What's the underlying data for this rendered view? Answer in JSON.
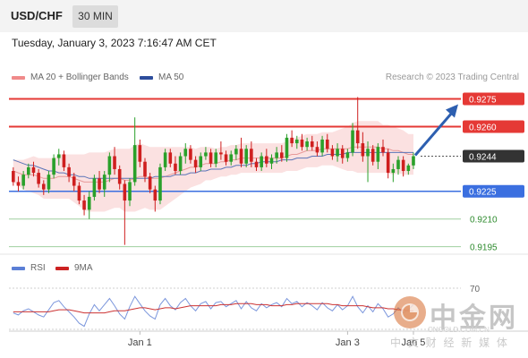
{
  "header": {
    "symbol": "USD/CHF",
    "timeframe": "30 MIN"
  },
  "timestamp": "Tuesday, January 3, 2023 7:16:47 AM CET",
  "legend": {
    "bollinger": {
      "label": "MA 20 + Bollinger Bands",
      "color": "#f08a8a"
    },
    "ma50": {
      "label": "MA 50",
      "color": "#2d4d9c"
    },
    "source": "Research © 2023 Trading Central"
  },
  "rsi_legend": {
    "rsi": {
      "label": "RSI",
      "color": "#5b7fd6"
    },
    "ma9": {
      "label": "9MA",
      "color": "#cc2222"
    }
  },
  "chart_data": {
    "type": "candlestick",
    "ylim": [
      0.919,
      0.9283
    ],
    "x_labels": [
      {
        "label": "Jan 1",
        "index": 25
      },
      {
        "label": "Jan 3",
        "index": 66
      },
      {
        "label": "Jan 5",
        "index": 79
      }
    ],
    "levels": [
      {
        "value": 0.9275,
        "label": "0.9275",
        "type": "resistance",
        "color": "#e53935"
      },
      {
        "value": 0.926,
        "label": "0.9260",
        "type": "resistance",
        "color": "#e53935"
      },
      {
        "value": 0.9244,
        "label": "0.9244",
        "type": "last",
        "color": "#333333"
      },
      {
        "value": 0.9225,
        "label": "0.9225",
        "type": "pivot",
        "color": "#3b6fe0"
      },
      {
        "value": 0.921,
        "label": "0.9210",
        "type": "support",
        "color": "#2e8b2e"
      },
      {
        "value": 0.9195,
        "label": "0.9195",
        "type": "support",
        "color": "#2e8b2e"
      }
    ],
    "candles": [
      [
        0.9236,
        0.9238,
        0.9228,
        0.923
      ],
      [
        0.923,
        0.9233,
        0.9225,
        0.9228
      ],
      [
        0.9228,
        0.9236,
        0.9226,
        0.9234
      ],
      [
        0.9234,
        0.924,
        0.9232,
        0.9238
      ],
      [
        0.9238,
        0.9241,
        0.9233,
        0.9235
      ],
      [
        0.9235,
        0.9237,
        0.9227,
        0.9229
      ],
      [
        0.9229,
        0.9231,
        0.9223,
        0.9226
      ],
      [
        0.9226,
        0.9236,
        0.9224,
        0.9234
      ],
      [
        0.9234,
        0.9245,
        0.9232,
        0.9243
      ],
      [
        0.9243,
        0.9248,
        0.9239,
        0.9245
      ],
      [
        0.9245,
        0.9247,
        0.9236,
        0.9238
      ],
      [
        0.9238,
        0.924,
        0.923,
        0.9233
      ],
      [
        0.9233,
        0.9235,
        0.9225,
        0.9228
      ],
      [
        0.9228,
        0.923,
        0.9218,
        0.922
      ],
      [
        0.922,
        0.9223,
        0.9212,
        0.9215
      ],
      [
        0.9215,
        0.9225,
        0.921,
        0.9222
      ],
      [
        0.9222,
        0.9234,
        0.922,
        0.9232
      ],
      [
        0.9232,
        0.9236,
        0.9224,
        0.9226
      ],
      [
        0.9226,
        0.9236,
        0.9222,
        0.9234
      ],
      [
        0.9234,
        0.9246,
        0.923,
        0.9244
      ],
      [
        0.9244,
        0.9249,
        0.9234,
        0.9237
      ],
      [
        0.9237,
        0.9239,
        0.9226,
        0.9229
      ],
      [
        0.9229,
        0.9231,
        0.9196,
        0.922
      ],
      [
        0.922,
        0.9232,
        0.9217,
        0.923
      ],
      [
        0.923,
        0.9265,
        0.9228,
        0.925
      ],
      [
        0.925,
        0.9253,
        0.9238,
        0.9241
      ],
      [
        0.9241,
        0.9243,
        0.923,
        0.9233
      ],
      [
        0.9233,
        0.9235,
        0.9224,
        0.9226
      ],
      [
        0.9226,
        0.9228,
        0.9214,
        0.922
      ],
      [
        0.922,
        0.924,
        0.9218,
        0.9238
      ],
      [
        0.9238,
        0.9248,
        0.9236,
        0.9246
      ],
      [
        0.9246,
        0.9248,
        0.9238,
        0.924
      ],
      [
        0.924,
        0.9244,
        0.9234,
        0.9236
      ],
      [
        0.9236,
        0.9246,
        0.9234,
        0.9244
      ],
      [
        0.9244,
        0.9251,
        0.924,
        0.9248
      ],
      [
        0.9248,
        0.925,
        0.924,
        0.9242
      ],
      [
        0.9242,
        0.9244,
        0.9235,
        0.9238
      ],
      [
        0.9238,
        0.9246,
        0.9236,
        0.9244
      ],
      [
        0.9244,
        0.9249,
        0.9242,
        0.9246
      ],
      [
        0.9246,
        0.9248,
        0.9238,
        0.924
      ],
      [
        0.924,
        0.9248,
        0.9238,
        0.9246
      ],
      [
        0.9246,
        0.9252,
        0.9242,
        0.9245
      ],
      [
        0.9245,
        0.9247,
        0.9239,
        0.9241
      ],
      [
        0.9241,
        0.9247,
        0.9239,
        0.9245
      ],
      [
        0.9245,
        0.925,
        0.9242,
        0.9248
      ],
      [
        0.9248,
        0.9254,
        0.9238,
        0.924
      ],
      [
        0.924,
        0.925,
        0.9238,
        0.9248
      ],
      [
        0.9248,
        0.9252,
        0.9238,
        0.9241
      ],
      [
        0.9241,
        0.9243,
        0.9236,
        0.9238
      ],
      [
        0.9238,
        0.9246,
        0.9236,
        0.9244
      ],
      [
        0.9244,
        0.9248,
        0.9238,
        0.924
      ],
      [
        0.924,
        0.9245,
        0.9237,
        0.9243
      ],
      [
        0.9243,
        0.9249,
        0.924,
        0.9246
      ],
      [
        0.9246,
        0.925,
        0.9241,
        0.9243
      ],
      [
        0.9243,
        0.9256,
        0.9241,
        0.9254
      ],
      [
        0.9254,
        0.9258,
        0.9249,
        0.9251
      ],
      [
        0.9251,
        0.9255,
        0.9248,
        0.9253
      ],
      [
        0.9253,
        0.9256,
        0.9247,
        0.9249
      ],
      [
        0.9249,
        0.9254,
        0.9247,
        0.9252
      ],
      [
        0.9252,
        0.9255,
        0.9247,
        0.9249
      ],
      [
        0.9249,
        0.9252,
        0.9244,
        0.9246
      ],
      [
        0.9246,
        0.9255,
        0.9244,
        0.9253
      ],
      [
        0.9253,
        0.9256,
        0.9246,
        0.9248
      ],
      [
        0.9248,
        0.925,
        0.9242,
        0.9244
      ],
      [
        0.9244,
        0.9251,
        0.9241,
        0.9248
      ],
      [
        0.9248,
        0.925,
        0.924,
        0.9243
      ],
      [
        0.9243,
        0.9248,
        0.9241,
        0.9246
      ],
      [
        0.9246,
        0.9262,
        0.9244,
        0.9258
      ],
      [
        0.9258,
        0.9276,
        0.9248,
        0.9251
      ],
      [
        0.9251,
        0.9257,
        0.9241,
        0.9244
      ],
      [
        0.9244,
        0.9252,
        0.923,
        0.9248
      ],
      [
        0.9248,
        0.925,
        0.9239,
        0.9241
      ],
      [
        0.9241,
        0.9251,
        0.9237,
        0.9249
      ],
      [
        0.9249,
        0.9253,
        0.9244,
        0.9246
      ],
      [
        0.9246,
        0.9248,
        0.9232,
        0.9235
      ],
      [
        0.9235,
        0.924,
        0.923,
        0.9237
      ],
      [
        0.9237,
        0.9244,
        0.9234,
        0.9242
      ],
      [
        0.9242,
        0.9244,
        0.9233,
        0.9236
      ],
      [
        0.9236,
        0.924,
        0.9234,
        0.9239
      ],
      [
        0.9239,
        0.9246,
        0.9237,
        0.9244
      ]
    ],
    "ma20": [
      0.9236,
      0.9235,
      0.9234,
      0.9234,
      0.9234,
      0.9233,
      0.9232,
      0.9232,
      0.9232,
      0.9233,
      0.9233,
      0.9233,
      0.9232,
      0.9231,
      0.923,
      0.923,
      0.923,
      0.923,
      0.923,
      0.9231,
      0.9232,
      0.9232,
      0.9231,
      0.9231,
      0.9232,
      0.9233,
      0.9233,
      0.9232,
      0.9232,
      0.9232,
      0.9233,
      0.9234,
      0.9235,
      0.9236,
      0.9237,
      0.9238,
      0.9238,
      0.9239,
      0.924,
      0.924,
      0.924,
      0.9241,
      0.9241,
      0.9242,
      0.9242,
      0.9243,
      0.9243,
      0.9243,
      0.9243,
      0.9243,
      0.9243,
      0.9243,
      0.9243,
      0.9243,
      0.9244,
      0.9245,
      0.9245,
      0.9246,
      0.9247,
      0.9247,
      0.9247,
      0.9248,
      0.9248,
      0.9248,
      0.9248,
      0.9248,
      0.9248,
      0.9249,
      0.9249,
      0.9249,
      0.9249,
      0.9249,
      0.9249,
      0.9248,
      0.9248,
      0.9247,
      0.9247,
      0.9246,
      0.9245,
      0.9245
    ],
    "bb_width": [
      0.0006,
      0.0007,
      0.0008,
      0.0009,
      0.001,
      0.001,
      0.0011,
      0.0011,
      0.0011,
      0.0012,
      0.0012,
      0.0012,
      0.0013,
      0.0014,
      0.0015,
      0.0016,
      0.0016,
      0.0016,
      0.0016,
      0.0016,
      0.0016,
      0.0016,
      0.0017,
      0.0017,
      0.0018,
      0.0018,
      0.0017,
      0.0017,
      0.0017,
      0.0017,
      0.0016,
      0.0015,
      0.0014,
      0.0013,
      0.0012,
      0.0011,
      0.001,
      0.001,
      0.0009,
      0.0009,
      0.0008,
      0.0008,
      0.0008,
      0.0008,
      0.0008,
      0.0008,
      0.0008,
      0.0008,
      0.0008,
      0.0008,
      0.0008,
      0.0008,
      0.0008,
      0.0008,
      0.0008,
      0.0009,
      0.0009,
      0.0009,
      0.0009,
      0.0009,
      0.0009,
      0.0009,
      0.0009,
      0.0009,
      0.001,
      0.0011,
      0.0012,
      0.0013,
      0.0014,
      0.0014,
      0.0014,
      0.0014,
      0.0014,
      0.0013,
      0.0013,
      0.0013,
      0.0012,
      0.0012,
      0.0011,
      0.0011
    ],
    "ma50": [
      0.9242,
      0.9241,
      0.924,
      0.9239,
      0.9239,
      0.9238,
      0.9237,
      0.9236,
      0.9236,
      0.9235,
      0.9235,
      0.9234,
      0.9234,
      0.9233,
      0.9233,
      0.9232,
      0.9232,
      0.9232,
      0.9232,
      0.9232,
      0.9232,
      0.9232,
      0.9232,
      0.9232,
      0.9232,
      0.9232,
      0.9232,
      0.9232,
      0.9233,
      0.9233,
      0.9233,
      0.9233,
      0.9234,
      0.9234,
      0.9234,
      0.9235,
      0.9235,
      0.9236,
      0.9236,
      0.9237,
      0.9237,
      0.9237,
      0.9238,
      0.9238,
      0.9239,
      0.9239,
      0.9239,
      0.924,
      0.924,
      0.9241,
      0.9241,
      0.9241,
      0.9241,
      0.9242,
      0.9242,
      0.9242,
      0.9243,
      0.9243,
      0.9243,
      0.9244,
      0.9244,
      0.9244,
      0.9245,
      0.9245,
      0.9245,
      0.9245,
      0.9246,
      0.9246,
      0.9246,
      0.9246,
      0.9246,
      0.9246,
      0.9246,
      0.9246,
      0.9246,
      0.9246,
      0.9246,
      0.9246,
      0.9246,
      0.9246
    ],
    "forecast": {
      "from_index": 79,
      "from_value": 0.9244,
      "to_value": 0.9275
    },
    "rsi": {
      "levels": [
        70,
        30
      ],
      "ylim": [
        0,
        100
      ],
      "rsi_values": [
        46,
        44,
        48,
        50,
        47,
        44,
        42,
        49,
        56,
        58,
        52,
        47,
        42,
        36,
        33,
        45,
        54,
        48,
        54,
        60,
        53,
        45,
        40,
        52,
        62,
        55,
        48,
        43,
        40,
        54,
        60,
        53,
        49,
        56,
        60,
        53,
        48,
        55,
        57,
        50,
        56,
        57,
        52,
        55,
        58,
        50,
        57,
        51,
        48,
        55,
        51,
        54,
        56,
        52,
        60,
        55,
        57,
        52,
        56,
        53,
        49,
        56,
        51,
        48,
        54,
        49,
        53,
        62,
        52,
        46,
        53,
        47,
        55,
        50,
        42,
        45,
        51,
        46,
        49,
        54
      ],
      "ma9_values": [
        47,
        47,
        47,
        47,
        47,
        47,
        47,
        47,
        48,
        49,
        49,
        49,
        48,
        47,
        46,
        46,
        46,
        46,
        46,
        47,
        48,
        48,
        48,
        49,
        50,
        51,
        51,
        50,
        49,
        50,
        51,
        51,
        50,
        51,
        52,
        53,
        53,
        53,
        53,
        53,
        53,
        54,
        54,
        54,
        55,
        55,
        55,
        55,
        54,
        54,
        54,
        53,
        53,
        53,
        54,
        54,
        55,
        55,
        55,
        55,
        55,
        55,
        55,
        54,
        54,
        53,
        53,
        53,
        53,
        53,
        52,
        51,
        51,
        51,
        50,
        50,
        49,
        49,
        48,
        48
      ]
    }
  },
  "watermark": {
    "name": "中金网",
    "domain": "CNGOLD.COM.CN",
    "slogan": "中 文 财 经 新 媒 体"
  }
}
